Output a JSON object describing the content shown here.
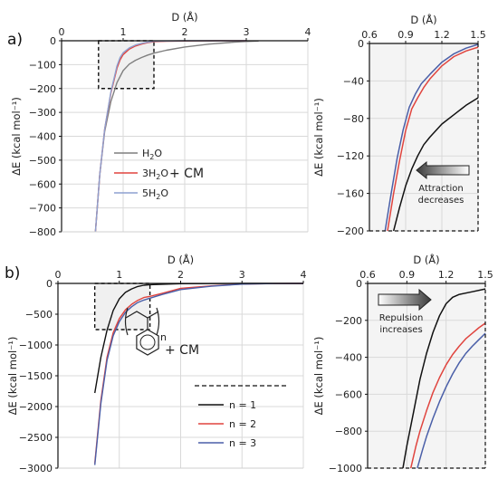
{
  "chart_data": [
    {
      "id": "a_main",
      "type": "line",
      "panel_label": "a)",
      "xlabel": "D (Å)",
      "ylabel": "ΔE (kcal mol⁻¹)",
      "xlim": [
        0,
        4
      ],
      "ylim": [
        -800,
        0
      ],
      "xticks": [
        0,
        1,
        2,
        3,
        4
      ],
      "yticks": [
        0,
        -100,
        -200,
        -300,
        -400,
        -500,
        -600,
        -700,
        -800
      ],
      "legend": {
        "position": "bottom-left",
        "suffix": "+ CM"
      },
      "series": [
        {
          "name": "H2O",
          "name_main": "H",
          "name_sub": "2",
          "name_rest": "O",
          "color": "#7f7f7f",
          "x": [
            0.55,
            0.62,
            0.7,
            0.8,
            0.9,
            1.0,
            1.1,
            1.2,
            1.3,
            1.4,
            1.5,
            1.7,
            2.0,
            2.4,
            2.8,
            3.0,
            3.2
          ],
          "y": [
            -800,
            -560,
            -380,
            -255,
            -175,
            -125,
            -98,
            -82,
            -70,
            -60,
            -52,
            -40,
            -26,
            -14,
            -6,
            -3,
            -1
          ]
        },
        {
          "name": "3H2O",
          "name_main": "3H",
          "name_sub": "2",
          "name_rest": "O",
          "color": "#e0443e",
          "x": [
            0.55,
            0.62,
            0.7,
            0.8,
            0.9,
            0.95,
            1.0,
            1.1,
            1.2,
            1.3,
            1.4,
            1.5,
            1.7,
            2.0,
            2.5,
            3.0
          ],
          "y": [
            -800,
            -560,
            -370,
            -220,
            -115,
            -80,
            -58,
            -35,
            -22,
            -14,
            -8,
            -4,
            -2,
            -1,
            0,
            0
          ]
        },
        {
          "name": "5H2O",
          "name_main": "5H",
          "name_sub": "2",
          "name_rest": "O",
          "color": "#8da0d0",
          "x": [
            0.55,
            0.62,
            0.7,
            0.8,
            0.9,
            0.95,
            1.0,
            1.1,
            1.2,
            1.3,
            1.4,
            1.5,
            1.7,
            2.0,
            2.5,
            3.0
          ],
          "y": [
            -800,
            -560,
            -370,
            -215,
            -105,
            -70,
            -50,
            -30,
            -18,
            -11,
            -6,
            -2,
            -1,
            0,
            0,
            0
          ]
        }
      ],
      "highlight_box": {
        "x": [
          0.6,
          1.5
        ],
        "y": [
          -200,
          0
        ]
      }
    },
    {
      "id": "a_zoom",
      "type": "line",
      "xlabel": "D (Å)",
      "ylabel": "ΔE (kcal mol⁻¹)",
      "xlim": [
        0.6,
        1.5
      ],
      "ylim": [
        -200,
        0
      ],
      "xticks": [
        0.6,
        0.9,
        1.2,
        1.5
      ],
      "yticks": [
        0,
        -40,
        -80,
        -120,
        -160,
        -200
      ],
      "annotation": "Attraction decreases",
      "annotation_lines": [
        "Attraction",
        "decreases"
      ],
      "series": [
        {
          "name": "H2O",
          "color": "#111111",
          "x": [
            0.8,
            0.85,
            0.9,
            0.95,
            1.0,
            1.05,
            1.1,
            1.2,
            1.3,
            1.4,
            1.5
          ],
          "y": [
            -200,
            -175,
            -152,
            -134,
            -120,
            -108,
            -100,
            -86,
            -76,
            -66,
            -58
          ]
        },
        {
          "name": "3H2O",
          "color": "#e0443e",
          "x": [
            0.75,
            0.8,
            0.85,
            0.9,
            0.95,
            1.0,
            1.05,
            1.1,
            1.2,
            1.3,
            1.4,
            1.5
          ],
          "y": [
            -200,
            -160,
            -125,
            -93,
            -70,
            -58,
            -47,
            -38,
            -24,
            -14,
            -8,
            -4
          ]
        },
        {
          "name": "5H2O",
          "color": "#4a5fa8",
          "x": [
            0.73,
            0.78,
            0.83,
            0.88,
            0.93,
            0.98,
            1.03,
            1.1,
            1.2,
            1.3,
            1.4,
            1.5
          ],
          "y": [
            -200,
            -160,
            -122,
            -92,
            -68,
            -54,
            -43,
            -33,
            -20,
            -11,
            -5,
            -1
          ]
        }
      ]
    },
    {
      "id": "b_main",
      "type": "line",
      "panel_label": "b)",
      "xlabel": "D (Å)",
      "ylabel": "ΔE (kcal mol⁻¹)",
      "xlim": [
        0,
        4
      ],
      "ylim": [
        -3000,
        0
      ],
      "xticks": [
        0,
        1,
        2,
        3,
        4
      ],
      "yticks": [
        0,
        -500,
        -1000,
        -1500,
        -2000,
        -2500,
        -3000
      ],
      "legend": {
        "position": "bottom-right",
        "suffix": "+ CM",
        "subscript": "n"
      },
      "series": [
        {
          "name": "n = 1",
          "color": "#111111",
          "x": [
            0.6,
            0.7,
            0.8,
            0.9,
            1.0,
            1.1,
            1.2,
            1.3,
            1.4,
            1.5,
            2.0,
            3.0,
            4.0
          ],
          "y": [
            -1780,
            -1200,
            -760,
            -440,
            -250,
            -145,
            -90,
            -50,
            -30,
            -20,
            -5,
            0,
            0
          ]
        },
        {
          "name": "n = 2",
          "color": "#e0443e",
          "x": [
            0.6,
            0.7,
            0.8,
            0.9,
            1.0,
            1.1,
            1.2,
            1.3,
            1.4,
            1.5,
            1.7,
            2.0,
            2.5,
            3.0,
            3.5,
            4.0
          ],
          "y": [
            -2920,
            -1900,
            -1200,
            -800,
            -570,
            -430,
            -340,
            -275,
            -230,
            -210,
            -160,
            -80,
            -40,
            -10,
            -3,
            0
          ]
        },
        {
          "name": "n = 3",
          "color": "#4a5fa8",
          "x": [
            0.6,
            0.7,
            0.8,
            0.9,
            1.0,
            1.1,
            1.2,
            1.3,
            1.4,
            1.5,
            1.7,
            2.0,
            2.5,
            3.0,
            3.5,
            4.0
          ],
          "y": [
            -2950,
            -1950,
            -1250,
            -850,
            -620,
            -470,
            -380,
            -310,
            -270,
            -240,
            -180,
            -100,
            -45,
            -12,
            -3,
            0
          ]
        }
      ],
      "highlight_box": {
        "x": [
          0.6,
          1.5
        ],
        "y": [
          -750,
          0
        ]
      }
    },
    {
      "id": "b_zoom",
      "type": "line",
      "xlabel": "D (Å)",
      "ylabel": "ΔE (kcal mol⁻¹)",
      "xlim": [
        0.6,
        1.5
      ],
      "ylim": [
        -1000,
        0
      ],
      "xticks": [
        0.6,
        0.9,
        1.2,
        1.5
      ],
      "yticks": [
        0,
        -200,
        -400,
        -600,
        -800,
        -1000
      ],
      "annotation": "Repulsion increases",
      "annotation_lines": [
        "Repulsion",
        "increases"
      ],
      "series": [
        {
          "name": "n = 1",
          "color": "#111111",
          "x": [
            0.87,
            0.9,
            0.95,
            1.0,
            1.05,
            1.1,
            1.15,
            1.2,
            1.25,
            1.3,
            1.4,
            1.5
          ],
          "y": [
            -1000,
            -880,
            -700,
            -520,
            -380,
            -265,
            -175,
            -110,
            -75,
            -60,
            -45,
            -30
          ]
        },
        {
          "name": "n = 2",
          "color": "#e0443e",
          "x": [
            0.93,
            0.97,
            1.0,
            1.05,
            1.1,
            1.15,
            1.2,
            1.25,
            1.3,
            1.35,
            1.4,
            1.45,
            1.5
          ],
          "y": [
            -1000,
            -880,
            -800,
            -690,
            -590,
            -510,
            -440,
            -385,
            -340,
            -300,
            -270,
            -240,
            -215
          ]
        },
        {
          "name": "n = 3",
          "color": "#4a5fa8",
          "x": [
            0.98,
            1.02,
            1.05,
            1.1,
            1.15,
            1.2,
            1.25,
            1.3,
            1.35,
            1.4,
            1.45,
            1.5
          ],
          "y": [
            -1000,
            -900,
            -830,
            -730,
            -640,
            -560,
            -490,
            -430,
            -380,
            -340,
            -305,
            -270
          ]
        }
      ]
    }
  ]
}
